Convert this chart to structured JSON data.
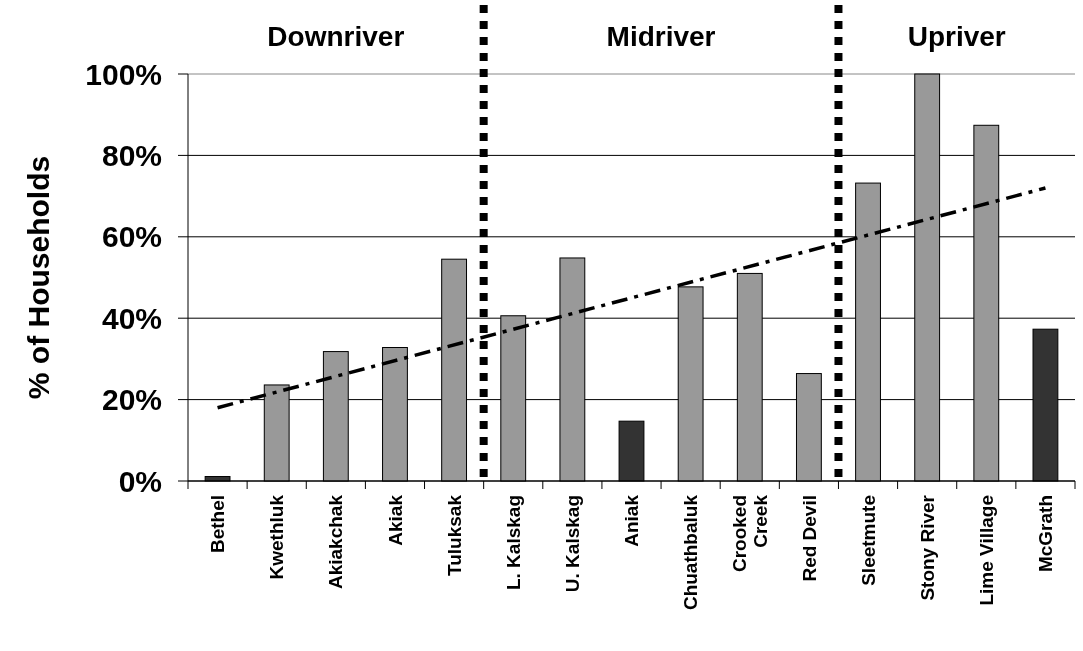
{
  "chart_data": {
    "type": "bar",
    "ylabel": "% of Households",
    "categories": [
      "Bethel",
      "Kwethluk",
      "Akiakchak",
      "Akiak",
      "Tuluksak",
      "L. Kalskag",
      "U. Kalskag",
      "Aniak",
      "Chuathbaluk",
      "Crooked\nCreek",
      "Red Devil",
      "Sleetmute",
      "Stony River",
      "Lime Village",
      "McGrath"
    ],
    "series": [
      {
        "values": [
          1.1,
          23.6,
          31.8,
          32.8,
          54.5,
          40.6,
          54.8,
          14.7,
          47.7,
          51.0,
          26.4,
          73.2,
          100,
          87.4,
          37.3
        ],
        "colors": [
          "#333333",
          "#999999",
          "#999999",
          "#999999",
          "#999999",
          "#999999",
          "#999999",
          "#333333",
          "#999999",
          "#999999",
          "#999999",
          "#999999",
          "#999999",
          "#999999",
          "#333333"
        ]
      },
      {
        "type": "line",
        "x": [
          "Bethel",
          "McGrath"
        ],
        "values": [
          18,
          72
        ],
        "color": "#000000",
        "line_style": "dashed"
      }
    ],
    "ylim": [
      0,
      100
    ],
    "yticks": [
      {
        "value": 0,
        "label": "0%"
      },
      {
        "value": 20,
        "label": "20%"
      },
      {
        "value": 40,
        "label": "40%"
      },
      {
        "value": 60,
        "label": "60%"
      },
      {
        "value": 80,
        "label": "80%"
      },
      {
        "value": 100,
        "label": "100%"
      }
    ],
    "grid": "y",
    "annotations": [
      "Downriver",
      "Midriver",
      "Upriver"
    ]
  }
}
